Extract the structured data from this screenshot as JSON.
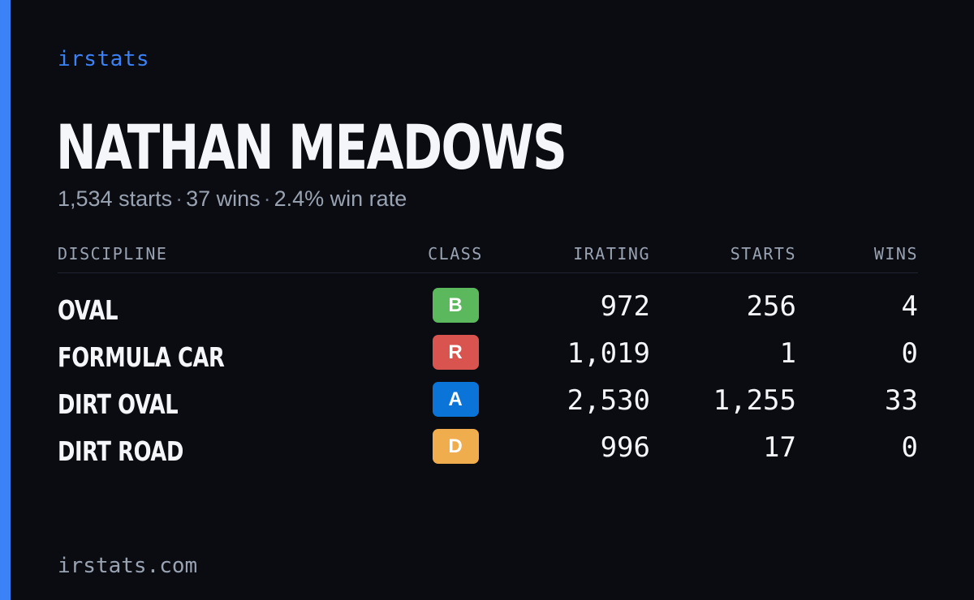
{
  "brand": "irstats",
  "driver": {
    "name": "NATHAN MEADOWS"
  },
  "summary": {
    "starts": "1,534 starts",
    "wins": "37 wins",
    "win_rate": "2.4% win rate",
    "separator": "·"
  },
  "table": {
    "headers": {
      "discipline": "DISCIPLINE",
      "class": "CLASS",
      "irating": "IRATING",
      "starts": "STARTS",
      "wins": "WINS"
    },
    "rows": [
      {
        "discipline": "OVAL",
        "class": "B",
        "class_color": "#5cb85c",
        "irating": "972",
        "starts": "256",
        "wins": "4"
      },
      {
        "discipline": "FORMULA CAR",
        "class": "R",
        "class_color": "#d9534f",
        "irating": "1,019",
        "starts": "1",
        "wins": "0"
      },
      {
        "discipline": "DIRT OVAL",
        "class": "A",
        "class_color": "#0b74d8",
        "irating": "2,530",
        "starts": "1,255",
        "wins": "33"
      },
      {
        "discipline": "DIRT ROAD",
        "class": "D",
        "class_color": "#f0ad4e",
        "irating": "996",
        "starts": "17",
        "wins": "0"
      }
    ]
  },
  "footer": {
    "url": "irstats.com"
  },
  "colors": {
    "accent": "#3b82f6",
    "background": "#0a0c12"
  }
}
